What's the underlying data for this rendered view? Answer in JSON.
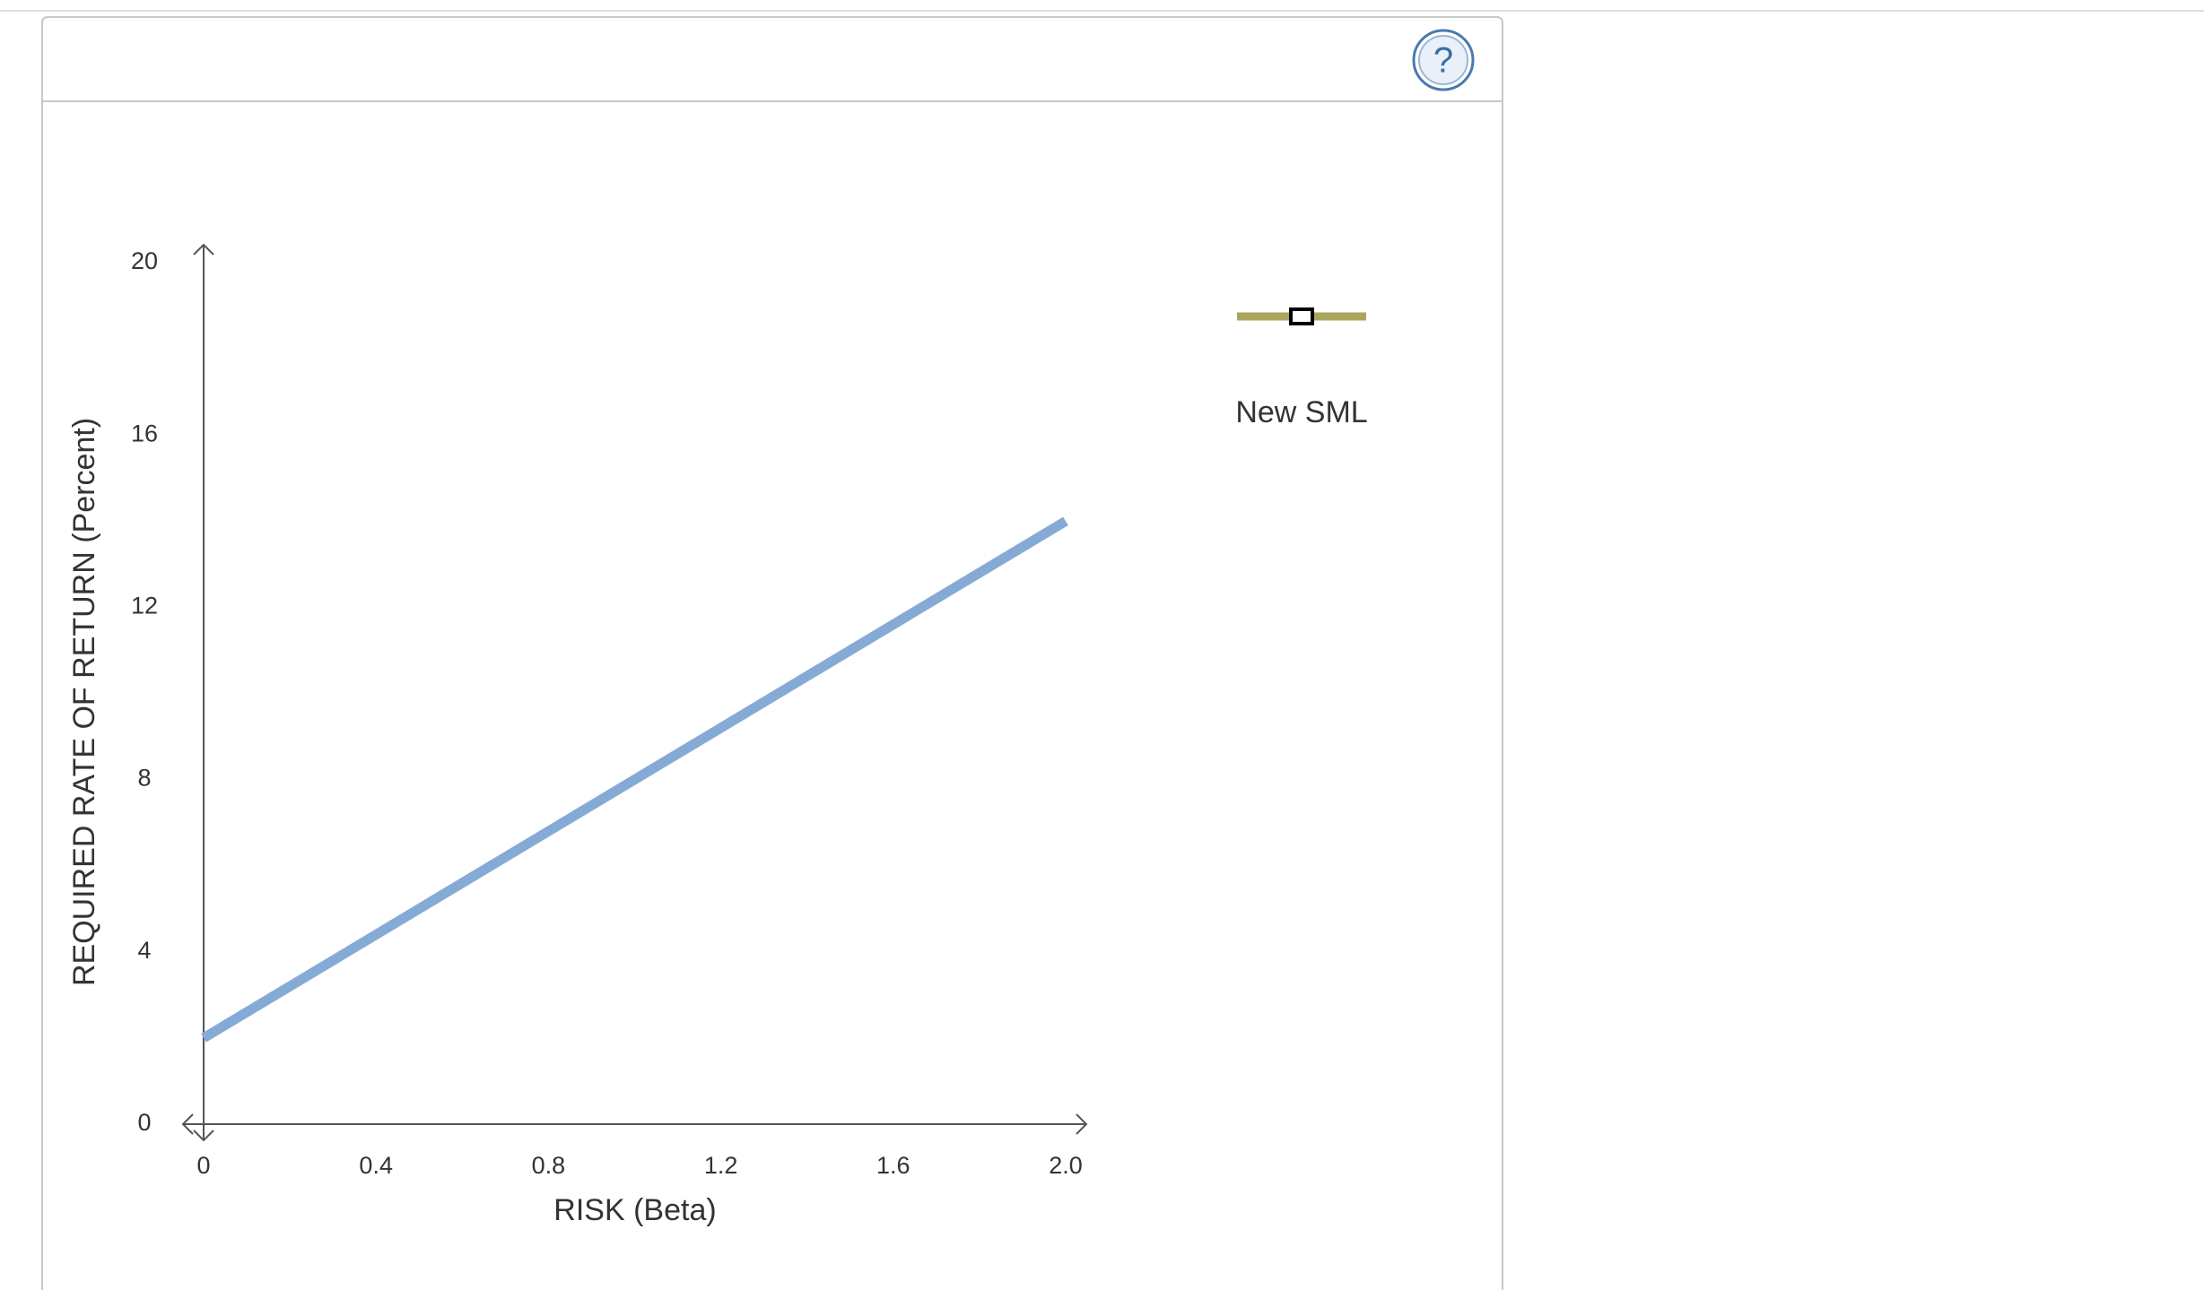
{
  "help_icon": "?",
  "chart_data": {
    "type": "line",
    "x_label": "RISK (Beta)",
    "y_label": "REQUIRED RATE OF RETURN (Percent)",
    "x": [
      0,
      2
    ],
    "series": [
      {
        "color": "#85aad6",
        "values": [
          2,
          14
        ]
      }
    ],
    "xlim": [
      0,
      2
    ],
    "ylim": [
      0,
      20
    ],
    "xticks": [
      0,
      0.4,
      0.8,
      1.2,
      1.6,
      {
        "value": 2,
        "label": "2.0"
      }
    ],
    "yticks": [
      0,
      4,
      8,
      12,
      16,
      20
    ],
    "legend_tool": {
      "label": "New SML",
      "color": "#a9a55c"
    }
  }
}
